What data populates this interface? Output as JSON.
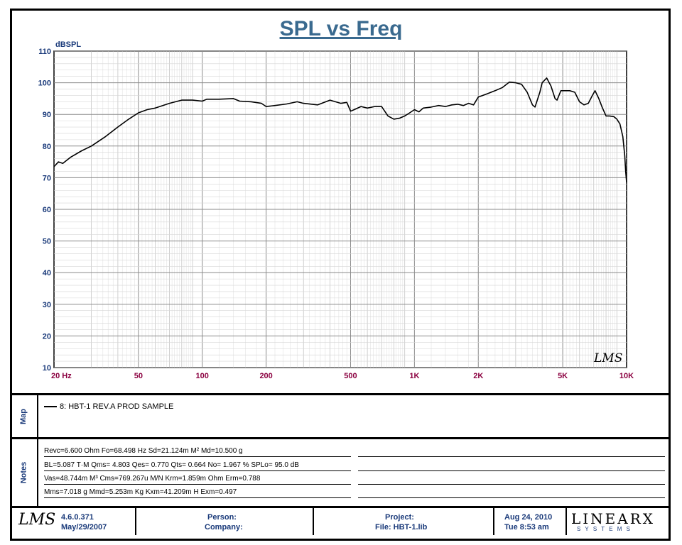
{
  "chart_data": {
    "type": "line",
    "title": "SPL vs Freq",
    "ylabel": "dBSPL",
    "xscale": "log",
    "xlim": [
      20,
      10000
    ],
    "ylim": [
      10,
      110
    ],
    "yticks": [
      "110",
      "100",
      "90",
      "80",
      "70",
      "60",
      "50",
      "40",
      "30",
      "20",
      "10"
    ],
    "xticks": [
      {
        "value": 20,
        "label": "20  Hz"
      },
      {
        "value": 50,
        "label": "50"
      },
      {
        "value": 100,
        "label": "100"
      },
      {
        "value": 200,
        "label": "200"
      },
      {
        "value": 500,
        "label": "500"
      },
      {
        "value": 1000,
        "label": "1K"
      },
      {
        "value": 2000,
        "label": "2K"
      },
      {
        "value": 5000,
        "label": "5K"
      },
      {
        "value": 10000,
        "label": "10K"
      }
    ],
    "grid": true,
    "series": [
      {
        "name": "8: HBT-1 REV.A PROD SAMPLE",
        "color": "#000000",
        "points": [
          [
            20,
            73.5
          ],
          [
            21,
            75
          ],
          [
            22,
            74.5
          ],
          [
            24,
            76.5
          ],
          [
            27,
            78.5
          ],
          [
            30,
            80
          ],
          [
            35,
            83
          ],
          [
            40,
            86
          ],
          [
            45,
            88.5
          ],
          [
            50,
            90.5
          ],
          [
            55,
            91.5
          ],
          [
            60,
            92
          ],
          [
            70,
            93.5
          ],
          [
            80,
            94.5
          ],
          [
            90,
            94.5
          ],
          [
            100,
            94.2
          ],
          [
            105,
            94.8
          ],
          [
            120,
            94.8
          ],
          [
            140,
            95
          ],
          [
            150,
            94.2
          ],
          [
            170,
            94
          ],
          [
            190,
            93.5
          ],
          [
            200,
            92.5
          ],
          [
            220,
            92.8
          ],
          [
            250,
            93.3
          ],
          [
            280,
            94
          ],
          [
            300,
            93.5
          ],
          [
            350,
            93
          ],
          [
            400,
            94.5
          ],
          [
            450,
            93.5
          ],
          [
            480,
            93.8
          ],
          [
            500,
            91
          ],
          [
            520,
            91.5
          ],
          [
            560,
            92.5
          ],
          [
            600,
            92
          ],
          [
            650,
            92.5
          ],
          [
            700,
            92.5
          ],
          [
            750,
            89.5
          ],
          [
            800,
            88.5
          ],
          [
            850,
            88.8
          ],
          [
            900,
            89.5
          ],
          [
            950,
            90.5
          ],
          [
            1000,
            91.5
          ],
          [
            1050,
            90.8
          ],
          [
            1100,
            92
          ],
          [
            1200,
            92.3
          ],
          [
            1300,
            92.8
          ],
          [
            1400,
            92.5
          ],
          [
            1500,
            93
          ],
          [
            1600,
            93.2
          ],
          [
            1700,
            92.8
          ],
          [
            1800,
            93.5
          ],
          [
            1900,
            93
          ],
          [
            2000,
            95.5
          ],
          [
            2200,
            96.5
          ],
          [
            2400,
            97.5
          ],
          [
            2600,
            98.5
          ],
          [
            2800,
            100.2
          ],
          [
            3000,
            100
          ],
          [
            3200,
            99.5
          ],
          [
            3400,
            97
          ],
          [
            3600,
            93
          ],
          [
            3700,
            92.3
          ],
          [
            3900,
            97
          ],
          [
            4000,
            100
          ],
          [
            4200,
            101.5
          ],
          [
            4400,
            99
          ],
          [
            4600,
            95
          ],
          [
            4700,
            94.5
          ],
          [
            4900,
            97.5
          ],
          [
            5100,
            97.5
          ],
          [
            5400,
            97.5
          ],
          [
            5700,
            97
          ],
          [
            6000,
            94
          ],
          [
            6300,
            93
          ],
          [
            6600,
            93.5
          ],
          [
            6900,
            96
          ],
          [
            7100,
            97.5
          ],
          [
            7400,
            95
          ],
          [
            7700,
            92
          ],
          [
            8000,
            89.5
          ],
          [
            8300,
            89.5
          ],
          [
            8700,
            89.3
          ],
          [
            9000,
            88.5
          ],
          [
            9300,
            87
          ],
          [
            9600,
            83
          ],
          [
            9800,
            77
          ],
          [
            9900,
            72
          ],
          [
            10000,
            68.5
          ]
        ]
      }
    ]
  },
  "logo_text": "LMS",
  "map": {
    "label": "Map",
    "entry": "8: HBT-1 REV.A PROD SAMPLE"
  },
  "notes": {
    "label": "Notes",
    "lines": [
      "Revc=6.600 Ohm  Fo=68.498 Hz  Sd=21.124m M² Md=10.500 g",
      "BL=5.087 T·M  Qms= 4.803  Qes= 0.770  Qts= 0.664  No= 1.967 %  SPLo= 95.0 dB",
      "Vas=48.744m M³  Cms=769.267u M/N  Krm=1.859m Ohm  Erm=0.788",
      "Mms=7.018 g  Mmd=5.253m Kg  Kxm=41.209m H  Exm=0.497"
    ]
  },
  "footer": {
    "version": "4.6.0.371",
    "version_date": "May/29/2007",
    "person_label": "Person:",
    "company_label": "Company:",
    "project_label": "Project:",
    "file_label": "File: HBT-1.lib",
    "date": "Aug 24, 2010",
    "time": "Tue  8:53 am",
    "brand_top": "LINEARX",
    "brand_bottom": "S Y S T E M S"
  }
}
